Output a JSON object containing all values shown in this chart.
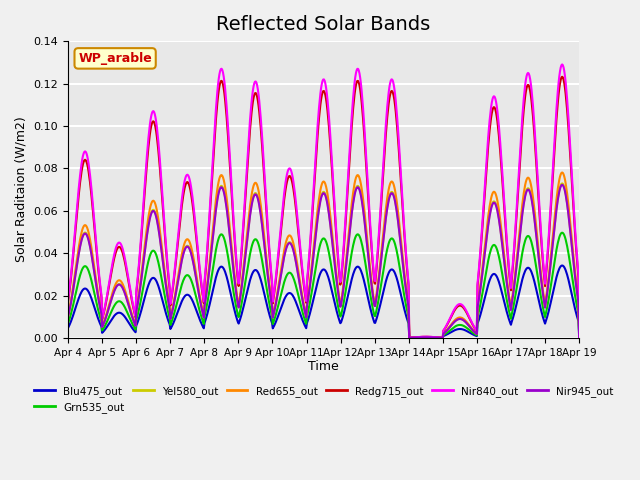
{
  "title": "Reflected Solar Bands",
  "xlabel": "Time",
  "ylabel": "Solar Raditaion (W/m2)",
  "ylim": [
    0,
    0.14
  ],
  "yticks": [
    0.0,
    0.02,
    0.04,
    0.06,
    0.08,
    0.1,
    0.12,
    0.14
  ],
  "xtick_labels": [
    "Apr 4",
    "Apr 5",
    "Apr 6",
    "Apr 7",
    "Apr 8",
    "Apr 9",
    "Apr 10",
    "Apr 11",
    "Apr 12",
    "Apr 13",
    "Apr 14",
    "Apr 15",
    "Apr 16",
    "Apr 17",
    "Apr 18",
    "Apr 19"
  ],
  "annotation_text": "WP_arable",
  "annotation_color": "#cc0000",
  "annotation_bg": "#ffffcc",
  "annotation_border": "#cc8800",
  "series": [
    {
      "label": "Blu475_out",
      "color": "#0000cc",
      "lw": 1.5,
      "scale": 0.265
    },
    {
      "label": "Grn535_out",
      "color": "#00cc00",
      "lw": 1.5,
      "scale": 0.385
    },
    {
      "label": "Yel580_out",
      "color": "#cccc00",
      "lw": 1.5,
      "scale": 0.565
    },
    {
      "label": "Red655_out",
      "color": "#ff8800",
      "lw": 1.5,
      "scale": 0.605
    },
    {
      "label": "Redg715_out",
      "color": "#cc0000",
      "lw": 1.5,
      "scale": 0.955
    },
    {
      "label": "Nir840_out",
      "color": "#ff00ff",
      "lw": 1.5,
      "scale": 1.0
    },
    {
      "label": "Nir945_out",
      "color": "#9900cc",
      "lw": 1.5,
      "scale": 0.56
    }
  ],
  "day_peaks": [
    0.088,
    0.045,
    0.107,
    0.077,
    0.127,
    0.121,
    0.08,
    0.122,
    0.127,
    0.122,
    0.005,
    0.016,
    0.114,
    0.125,
    0.129
  ],
  "cloudy_days": [
    10
  ],
  "background_color": "#e8e8e8",
  "plot_bg_color": "#d8d8d8",
  "grid_color": "#ffffff",
  "title_fontsize": 14,
  "n_days": 15,
  "pts_per_day": 48
}
